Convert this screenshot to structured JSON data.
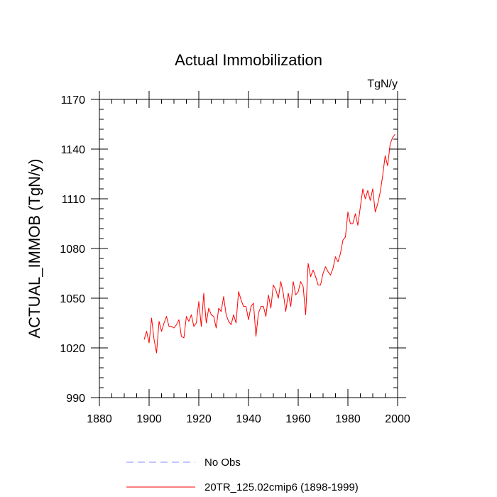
{
  "chart_data": {
    "type": "line",
    "title": "Actual Immobilization",
    "units": "TgN/y",
    "xlabel": "",
    "ylabel": "ACTUAL_IMMOB  (TgN/y)",
    "xlim": [
      1880,
      2000
    ],
    "ylim": [
      990,
      1170
    ],
    "xticks": [
      1880,
      1900,
      1920,
      1940,
      1960,
      1980,
      2000
    ],
    "yticks": [
      990,
      1020,
      1050,
      1080,
      1110,
      1140,
      1170
    ],
    "x_minor_step": 5,
    "y_minor_step": 6,
    "colors": {
      "model": "#ff0000",
      "obs": "#8888ff",
      "axis": "#000000"
    },
    "series": [
      {
        "name": "20TR_125.02cmip6 (1898-1999)",
        "style": "solid",
        "x": [
          1898,
          1899,
          1900,
          1901,
          1902,
          1903,
          1904,
          1905,
          1906,
          1907,
          1908,
          1909,
          1910,
          1911,
          1912,
          1913,
          1914,
          1915,
          1916,
          1917,
          1918,
          1919,
          1920,
          1921,
          1922,
          1923,
          1924,
          1925,
          1926,
          1927,
          1928,
          1929,
          1930,
          1931,
          1932,
          1933,
          1934,
          1935,
          1936,
          1937,
          1938,
          1939,
          1940,
          1941,
          1942,
          1943,
          1944,
          1945,
          1946,
          1947,
          1948,
          1949,
          1950,
          1951,
          1952,
          1953,
          1954,
          1955,
          1956,
          1957,
          1958,
          1959,
          1960,
          1961,
          1962,
          1963,
          1964,
          1965,
          1966,
          1967,
          1968,
          1969,
          1970,
          1971,
          1972,
          1973,
          1974,
          1975,
          1976,
          1977,
          1978,
          1979,
          1980,
          1981,
          1982,
          1983,
          1984,
          1985,
          1986,
          1987,
          1988,
          1989,
          1990,
          1991,
          1992,
          1993,
          1994,
          1995,
          1996,
          1997,
          1998,
          1999
        ],
        "values": [
          1025,
          1030,
          1023,
          1038,
          1025,
          1017,
          1036,
          1030,
          1035,
          1039,
          1033,
          1033,
          1032,
          1034,
          1037,
          1027,
          1026,
          1039,
          1036,
          1040,
          1033,
          1035,
          1048,
          1033,
          1053,
          1035,
          1044,
          1040,
          1039,
          1032,
          1044,
          1042,
          1051,
          1040,
          1036,
          1034,
          1040,
          1035,
          1054,
          1049,
          1045,
          1045,
          1037,
          1045,
          1047,
          1027,
          1041,
          1045,
          1045,
          1039,
          1052,
          1044,
          1058,
          1055,
          1050,
          1060,
          1053,
          1042,
          1053,
          1045,
          1060,
          1052,
          1054,
          1060,
          1057,
          1040,
          1071,
          1063,
          1067,
          1063,
          1058,
          1058,
          1065,
          1069,
          1066,
          1064,
          1068,
          1075,
          1072,
          1077,
          1085,
          1087,
          1102,
          1095,
          1095,
          1101,
          1094,
          1105,
          1116,
          1110,
          1115,
          1109,
          1116,
          1102,
          1107,
          1114,
          1124,
          1136,
          1130,
          1143,
          1147,
          1149
        ]
      },
      {
        "name": "No Obs",
        "style": "dashed",
        "x": [],
        "values": []
      }
    ],
    "legend": [
      {
        "label": "No Obs",
        "style": "dashed",
        "color": "#8888ff"
      },
      {
        "label": "20TR_125.02cmip6 (1898-1999)",
        "style": "solid",
        "color": "#ff0000"
      }
    ],
    "legend_placement": "bottom",
    "grid": false
  }
}
